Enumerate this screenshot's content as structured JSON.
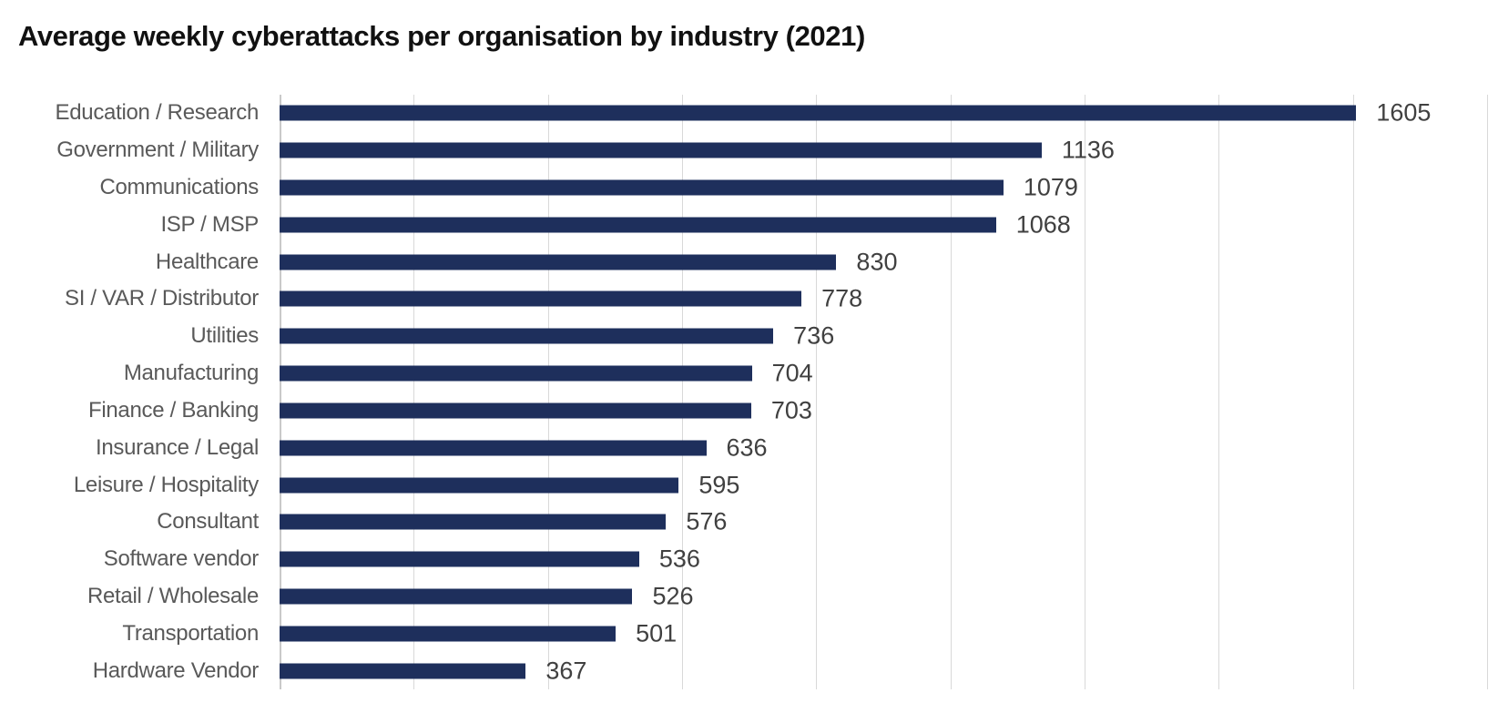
{
  "title": "Average weekly cyberattacks per organisation by industry (2021)",
  "colors": {
    "background": "#ffffff",
    "title": "#111111",
    "bar": "#1e2f5c",
    "gridline": "#d9d9d9",
    "axis_line": "#c9c9c9",
    "category_label": "#595959",
    "value_label": "#404040"
  },
  "chart_data": {
    "type": "bar",
    "orientation": "horizontal",
    "title": "Average weekly cyberattacks per organisation by industry (2021)",
    "categories": [
      "Education / Research",
      "Government / Military",
      "Communications",
      "ISP / MSP",
      "Healthcare",
      "SI / VAR / Distributor",
      "Utilities",
      "Manufacturing",
      "Finance / Banking",
      "Insurance / Legal",
      "Leisure / Hospitality",
      "Consultant",
      "Software vendor",
      "Retail / Wholesale",
      "Transportation",
      "Hardware Vendor"
    ],
    "values": [
      1605,
      1136,
      1079,
      1068,
      830,
      778,
      736,
      704,
      703,
      636,
      595,
      576,
      536,
      526,
      501,
      367
    ],
    "xlabel": "",
    "ylabel": "",
    "xlim": [
      0,
      1800
    ],
    "gridline_step": 200,
    "grid": true,
    "legend": false,
    "value_labels": true,
    "sort": "descending"
  }
}
